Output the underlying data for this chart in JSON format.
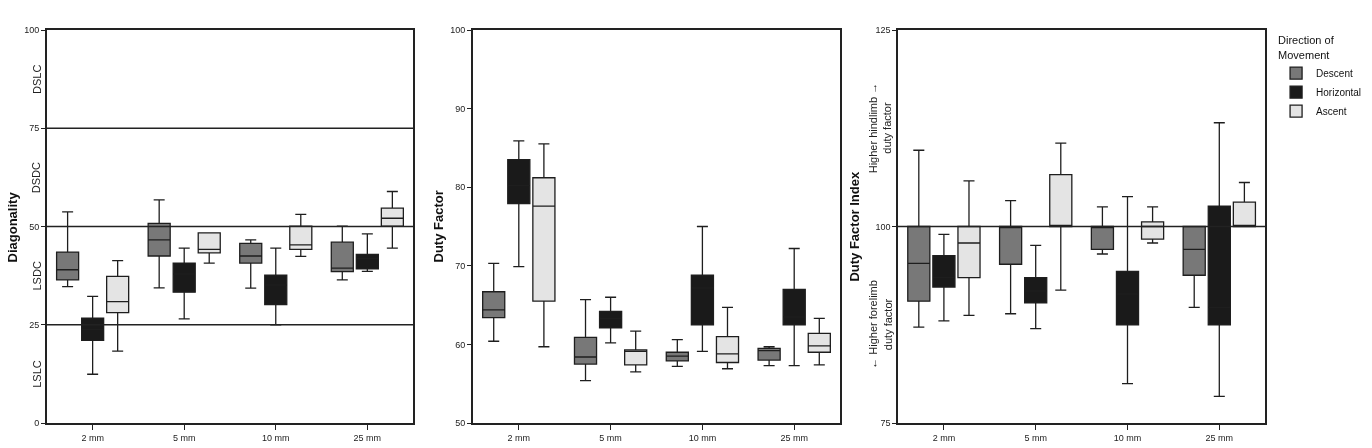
{
  "chart_data": [
    {
      "type": "box",
      "ylabel": "Diagonality",
      "categories": [
        "2 mm",
        "5 mm",
        "10 mm",
        "25 mm"
      ],
      "ylim": [
        0,
        100
      ],
      "yticks": [
        0,
        25,
        50,
        75,
        100
      ],
      "legend": false,
      "series": [
        {
          "color": "#787878",
          "boxes": [
            {
              "low": 34.7,
              "q1": 36.4,
              "median": 39.0,
              "q3": 43.5,
              "high": 53.7
            },
            {
              "low": 34.4,
              "q1": 42.5,
              "median": 46.6,
              "q3": 50.8,
              "high": 56.8
            },
            {
              "low": 34.3,
              "q1": 40.7,
              "median": 42.5,
              "q3": 45.7,
              "high": 46.6
            },
            {
              "low": 36.4,
              "q1": 38.5,
              "median": 39.4,
              "q3": 46.0,
              "high": 50.1
            }
          ]
        },
        {
          "color": "#1a1a1a",
          "boxes": [
            {
              "low": 12.4,
              "q1": 21.0,
              "median": 23.8,
              "q3": 26.7,
              "high": 32.2
            },
            {
              "low": 26.5,
              "q1": 33.3,
              "median": 37.9,
              "q3": 40.7,
              "high": 44.5
            },
            {
              "low": 25.0,
              "q1": 30.1,
              "median": 35.1,
              "q3": 37.6,
              "high": 44.5
            },
            {
              "low": 38.6,
              "q1": 39.2,
              "median": 41.9,
              "q3": 42.9,
              "high": 48.1
            }
          ]
        },
        {
          "color": "#e4e4e4",
          "boxes": [
            {
              "low": 18.3,
              "q1": 28.1,
              "median": 30.9,
              "q3": 37.3,
              "high": 41.3
            },
            {
              "low": 40.7,
              "q1": 43.3,
              "median": 44.2,
              "q3": 48.4,
              "high": 48.4
            },
            {
              "low": 42.4,
              "q1": 44.2,
              "median": 45.3,
              "q3": 50.1,
              "high": 53.1
            },
            {
              "low": 44.5,
              "q1": 50.1,
              "median": 52.1,
              "q3": 54.7,
              "high": 58.9
            }
          ]
        }
      ],
      "ref_lines": [
        {
          "axis": "y",
          "value": 25
        },
        {
          "axis": "y",
          "value": 50
        },
        {
          "axis": "y",
          "value": 75
        }
      ],
      "annotations": [
        "DSLC",
        "DSDC",
        "LSDC",
        "LSLC"
      ]
    },
    {
      "type": "box",
      "ylabel": "Duty Factor",
      "categories": [
        "2 mm",
        "5 mm",
        "10 mm",
        "25 mm"
      ],
      "ylim": [
        50,
        100
      ],
      "yticks": [
        50,
        60,
        70,
        80,
        90,
        100
      ],
      "legend": false,
      "series": [
        {
          "color": "#787878",
          "boxes": [
            {
              "low": 60.4,
              "q1": 63.4,
              "median": 64.4,
              "q3": 66.7,
              "high": 70.3
            },
            {
              "low": 55.4,
              "q1": 57.5,
              "median": 58.4,
              "q3": 60.9,
              "high": 65.7
            },
            {
              "low": 57.2,
              "q1": 57.9,
              "median": 58.5,
              "q3": 59.0,
              "high": 60.6
            },
            {
              "low": 57.3,
              "q1": 58.0,
              "median": 59.2,
              "q3": 59.5,
              "high": 59.7
            }
          ]
        },
        {
          "color": "#1a1a1a",
          "boxes": [
            {
              "low": 69.9,
              "q1": 77.9,
              "median": 80.2,
              "q3": 83.5,
              "high": 85.9
            },
            {
              "low": 60.2,
              "q1": 62.1,
              "median": 63.3,
              "q3": 64.2,
              "high": 66.0
            },
            {
              "low": 59.1,
              "q1": 62.5,
              "median": 67.2,
              "q3": 68.8,
              "high": 75.0
            },
            {
              "low": 57.3,
              "q1": 62.5,
              "median": 63.5,
              "q3": 67.0,
              "high": 72.2
            }
          ]
        },
        {
          "color": "#e4e4e4",
          "boxes": [
            {
              "low": 59.7,
              "q1": 65.5,
              "median": 77.6,
              "q3": 81.2,
              "high": 85.5
            },
            {
              "low": 56.5,
              "q1": 57.4,
              "median": 59.1,
              "q3": 59.3,
              "high": 61.7
            },
            {
              "low": 56.9,
              "q1": 57.7,
              "median": 58.8,
              "q3": 61.0,
              "high": 64.7
            },
            {
              "low": 57.4,
              "q1": 59.0,
              "median": 59.8,
              "q3": 61.4,
              "high": 63.3
            }
          ]
        }
      ]
    },
    {
      "type": "box",
      "ylabel": "Duty Factor Index",
      "categories": [
        "2 mm",
        "5 mm",
        "10 mm",
        "25 mm"
      ],
      "ylim": [
        75,
        125
      ],
      "yticks": [
        75,
        100,
        125
      ],
      "legend": "right",
      "legend_title": "Direction of\nMovement",
      "series": [
        {
          "name": "Descent",
          "color": "#787878",
          "boxes": [
            {
              "low": 87.2,
              "q1": 90.5,
              "median": 95.3,
              "q3": 100,
              "high": 109.7
            },
            {
              "low": 88.9,
              "q1": 95.2,
              "median": 100,
              "q3": 100,
              "high": 103.3
            },
            {
              "low": 96.5,
              "q1": 97.1,
              "median": 100,
              "q3": 100,
              "high": 102.5
            },
            {
              "low": 89.7,
              "q1": 93.8,
              "median": 97.1,
              "q3": 100,
              "high": 100
            }
          ]
        },
        {
          "name": "Horizontal",
          "color": "#1a1a1a",
          "boxes": [
            {
              "low": 88.0,
              "q1": 92.3,
              "median": 93.5,
              "q3": 96.3,
              "high": 99.0
            },
            {
              "low": 87.0,
              "q1": 90.3,
              "median": 91.8,
              "q3": 93.5,
              "high": 97.6
            },
            {
              "low": 80.0,
              "q1": 87.5,
              "median": 91.4,
              "q3": 94.3,
              "high": 103.8
            },
            {
              "low": 78.4,
              "q1": 87.5,
              "median": 89.7,
              "q3": 102.6,
              "high": 113.2
            }
          ]
        },
        {
          "name": "Ascent",
          "color": "#e4e4e4",
          "boxes": [
            {
              "low": 88.7,
              "q1": 93.5,
              "median": 97.9,
              "q3": 100,
              "high": 105.8
            },
            {
              "low": 91.9,
              "q1": 100,
              "median": 100,
              "q3": 106.6,
              "high": 110.6
            },
            {
              "low": 97.9,
              "q1": 98.4,
              "median": 100,
              "q3": 100.6,
              "high": 102.5
            },
            {
              "low": 100,
              "q1": 100,
              "median": 100,
              "q3": 103.1,
              "high": 105.6
            }
          ]
        }
      ],
      "ref_lines": [
        {
          "axis": "y",
          "value": 100
        }
      ],
      "annotations": [
        "Higher hindlimb →\nduty factor",
        "← Higher forelimb\nduty factor"
      ]
    }
  ]
}
